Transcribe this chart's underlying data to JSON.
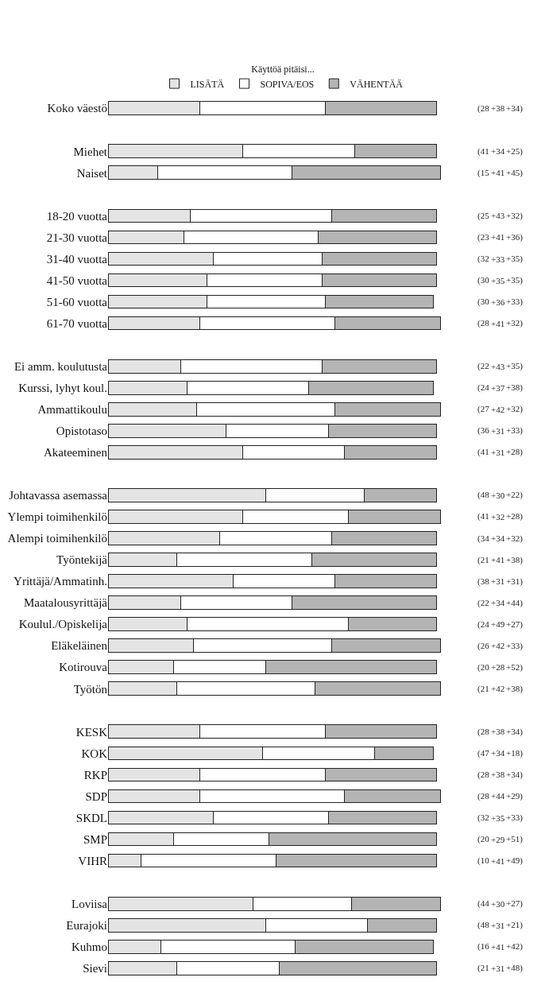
{
  "chart_data": {
    "type": "bar",
    "orientation": "horizontal",
    "stacked": true,
    "legend_title": "Käyttöä pitäisi...",
    "legend": "top",
    "tick_labels": "y",
    "categories": [
      "Koko väestö",
      null,
      "Miehet",
      "Naiset",
      null,
      "18-20 vuotta",
      "21-30 vuotta",
      "31-40 vuotta",
      "41-50 vuotta",
      "51-60 vuotta",
      "61-70 vuotta",
      null,
      "Ei amm. koulutusta",
      "Kurssi, lyhyt koul.",
      "Ammattikoulu",
      "Opistotaso",
      "Akateeminen",
      null,
      "Johtavassa asemassa",
      "Ylempi toimihenkilö",
      "Alempi toimihenkilö",
      "Työntekijä",
      "Yrittäjä/Ammatinh.",
      "Maatalousyrittäjä",
      "Koulul./Opiskelija",
      "Eläkeläinen",
      "Kotirouva",
      "Työtön",
      null,
      "KESK",
      "KOK",
      "RKP",
      "SDP",
      "SKDL",
      "SMP",
      "VIHR",
      null,
      "Loviisa",
      "Eurajoki",
      "Kuhmo",
      "Sievi"
    ],
    "series": [
      {
        "name": "LISÄTÄ",
        "color": "#e4e4e4",
        "values": [
          28,
          null,
          41,
          15,
          null,
          25,
          23,
          32,
          30,
          30,
          28,
          null,
          22,
          24,
          27,
          36,
          41,
          null,
          48,
          41,
          34,
          21,
          38,
          22,
          24,
          26,
          20,
          21,
          null,
          28,
          47,
          28,
          28,
          32,
          20,
          10,
          null,
          44,
          48,
          16,
          21
        ],
        "value_labels": [
          "(28",
          null,
          "(41",
          "(15",
          null,
          "(25",
          "(23",
          "(32",
          "(30",
          "(30",
          "(28",
          null,
          "(22",
          "(24",
          "(27",
          "(36",
          "(41",
          null,
          "(48",
          "(41",
          "(34",
          "(21",
          "(38",
          "(22",
          "(24",
          "(26",
          "(20",
          "(21",
          null,
          "(28",
          "(47",
          "(28",
          "(28",
          "(32",
          "(20",
          "(10",
          null,
          "(44",
          "(48",
          "(16",
          "(21"
        ]
      },
      {
        "name": "SOPIVA/EOS",
        "color": "#ffffff",
        "values": [
          38,
          null,
          34,
          41,
          null,
          43,
          41,
          33,
          35,
          36,
          41,
          null,
          43,
          37,
          42,
          31,
          31,
          null,
          30,
          32,
          34,
          41,
          31,
          34,
          49,
          42,
          28,
          42,
          null,
          38,
          34,
          38,
          44,
          35,
          29,
          41,
          null,
          30,
          31,
          41,
          31
        ],
        "value_labels": [
          "+38",
          null,
          "+34",
          "+41",
          null,
          "+43",
          "+41",
          "+33",
          "+35",
          "+36",
          "+41",
          null,
          "+43",
          "+37",
          "+42",
          "+31",
          "+31",
          null,
          "+30",
          "+32",
          "+34",
          "+41",
          "+31",
          "+34",
          "+49",
          "+42",
          "+28",
          "+42",
          null,
          "+38",
          "+34",
          "+38",
          "+44",
          "+35",
          "+29",
          "+41",
          null,
          "+30",
          "+31",
          "+41",
          "+31"
        ]
      },
      {
        "name": "VÄHENTÄÄ",
        "color": "#b4b4b4",
        "values": [
          34,
          null,
          25,
          45,
          null,
          32,
          36,
          35,
          35,
          33,
          32,
          null,
          35,
          38,
          32,
          33,
          28,
          null,
          22,
          28,
          32,
          38,
          31,
          44,
          27,
          33,
          52,
          38,
          null,
          34,
          18,
          34,
          29,
          33,
          51,
          49,
          null,
          27,
          21,
          42,
          48
        ],
        "value_labels": [
          "+34)",
          null,
          "+25)",
          "+45)",
          null,
          "+32)",
          "+36)",
          "+35)",
          "+35)",
          "+33)",
          "+32)",
          null,
          "+35)",
          "+38)",
          "+32)",
          "+33)",
          "+28)",
          null,
          "+22)",
          "+28)",
          "+32)",
          "+38)",
          "+31)",
          "+44)",
          "+27)",
          "+33)",
          "+52)",
          "+38)",
          null,
          "+34)",
          "+18)",
          "+34)",
          "+29)",
          "+33)",
          "+51)",
          "+49)",
          null,
          "+27)",
          "+21)",
          "+42)",
          "+48)"
        ]
      }
    ]
  }
}
